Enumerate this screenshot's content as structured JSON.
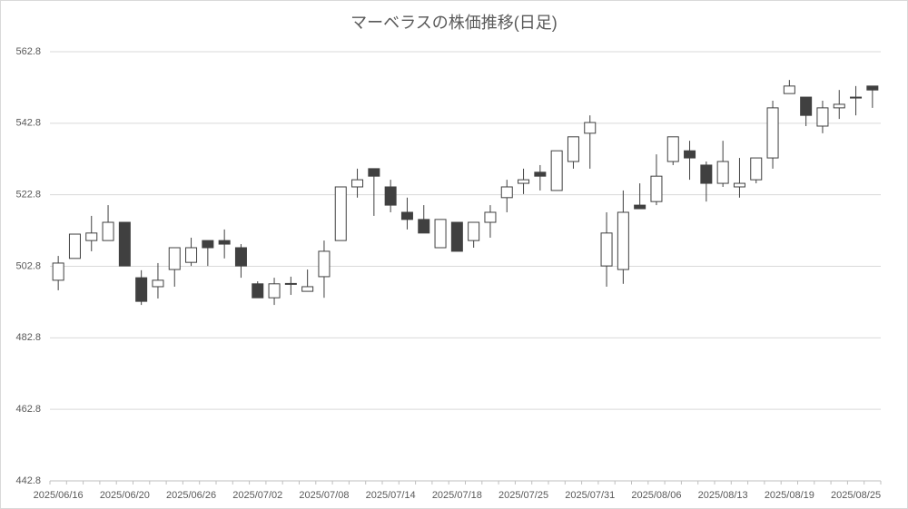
{
  "chart_data": {
    "type": "candlestick",
    "title": "マーベラスの株価推移(日足)",
    "categories": [
      "2025/06/16",
      null,
      null,
      null,
      "2025/06/20",
      null,
      null,
      null,
      "2025/06/26",
      null,
      null,
      null,
      "2025/07/02",
      null,
      null,
      null,
      "2025/07/08",
      null,
      null,
      null,
      "2025/07/14",
      null,
      null,
      null,
      "2025/07/18",
      null,
      null,
      null,
      "2025/07/25",
      null,
      null,
      null,
      "2025/07/31",
      null,
      null,
      null,
      "2025/08/06",
      null,
      null,
      null,
      "2025/08/13",
      null,
      null,
      null,
      "2025/08/19",
      null,
      null,
      null,
      "2025/08/25",
      null
    ],
    "open": [
      498.9,
      505.0,
      510.0,
      510.0,
      515.1,
      499.6,
      497.1,
      501.9,
      503.9,
      510.0,
      510.0,
      508.0,
      497.9,
      494.0,
      497.9,
      495.8,
      499.9,
      510.0,
      525.0,
      530.1,
      525.0,
      517.9,
      515.9,
      508.0,
      515.1,
      510.0,
      515.1,
      522.0,
      526.0,
      529.1,
      524.0,
      532.1,
      540.0,
      502.9,
      501.9,
      519.9,
      520.9,
      532.1,
      535.1,
      531.1,
      526.0,
      525.0,
      527.0,
      533.1,
      551.1,
      550.1,
      542.0,
      547.1,
      550.1,
      553.2
    ],
    "high": [
      505.7,
      511.8,
      516.9,
      519.9,
      515.1,
      501.7,
      503.7,
      508.0,
      510.8,
      510.0,
      513.1,
      509.0,
      498.6,
      499.6,
      499.9,
      501.9,
      510.0,
      525.0,
      530.1,
      530.1,
      527.0,
      522.0,
      519.9,
      515.9,
      515.1,
      515.1,
      519.9,
      527.0,
      530.1,
      531.1,
      535.1,
      539.0,
      545.0,
      517.9,
      524.0,
      526.0,
      534.1,
      539.0,
      537.9,
      532.1,
      537.9,
      533.1,
      533.1,
      549.1,
      554.9,
      550.1,
      549.1,
      552.1,
      553.2,
      553.2
    ],
    "low": [
      496.1,
      505.0,
      507.0,
      510.0,
      502.9,
      492.0,
      493.8,
      497.1,
      502.9,
      502.9,
      505.0,
      499.6,
      494.0,
      492.0,
      494.8,
      495.8,
      494.0,
      510.0,
      522.0,
      516.9,
      517.9,
      513.1,
      512.1,
      508.0,
      507.0,
      508.0,
      510.8,
      517.9,
      523.0,
      524.0,
      524.0,
      530.1,
      530.1,
      497.1,
      497.9,
      518.9,
      519.9,
      531.1,
      527.0,
      520.9,
      525.0,
      522.0,
      526.0,
      530.1,
      551.1,
      542.0,
      540.0,
      544.0,
      545.0,
      547.1
    ],
    "close": [
      503.7,
      511.8,
      512.1,
      515.1,
      502.9,
      493.0,
      498.9,
      508.0,
      508.0,
      508.0,
      509.0,
      502.9,
      494.0,
      497.9,
      498.0,
      497.1,
      507.0,
      525.0,
      527.0,
      528.0,
      519.9,
      515.9,
      512.1,
      515.9,
      507.0,
      515.1,
      517.9,
      525.0,
      527.0,
      528.0,
      535.1,
      539.0,
      543.0,
      512.1,
      517.9,
      518.9,
      528.0,
      539.0,
      533.1,
      526.0,
      532.1,
      526.0,
      533.1,
      547.1,
      553.2,
      545.0,
      547.1,
      548.1,
      550.1,
      552.1
    ],
    "up_color": "#ffffff",
    "down_color": "#404040",
    "edge_color": "#404040",
    "ylim": [
      442.8,
      562.8
    ],
    "yticks": [
      442.8,
      462.8,
      482.8,
      502.8,
      522.8,
      542.8,
      562.8
    ],
    "grid": true
  }
}
